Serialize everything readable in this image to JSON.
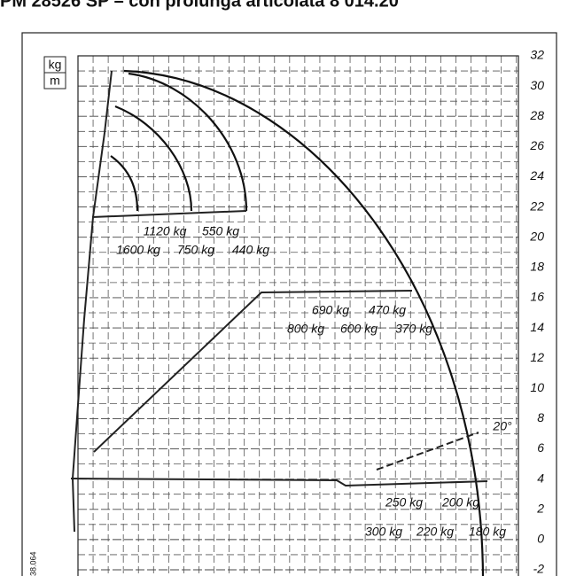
{
  "header": {
    "title": "PM 28526 SP – con prolunga articolata 8 014.20"
  },
  "units": {
    "top": "kg",
    "bottom": "m"
  },
  "axis": {
    "ticks": [
      32,
      30,
      28,
      26,
      24,
      22,
      20,
      18,
      16,
      14,
      12,
      10,
      8,
      6,
      4,
      2,
      0,
      -2
    ]
  },
  "loads": {
    "upper": [
      "1120 kg",
      "550 kg",
      "1600 kg",
      "750 kg",
      "440 kg"
    ],
    "middle": [
      "690 kg",
      "470 kg",
      "800 kg",
      "600 kg",
      "370 kg"
    ],
    "lower": [
      "250 kg",
      "200 kg",
      "300 kg",
      "220 kg",
      "180 kg"
    ]
  },
  "angle": "20°",
  "code": "38.064"
}
